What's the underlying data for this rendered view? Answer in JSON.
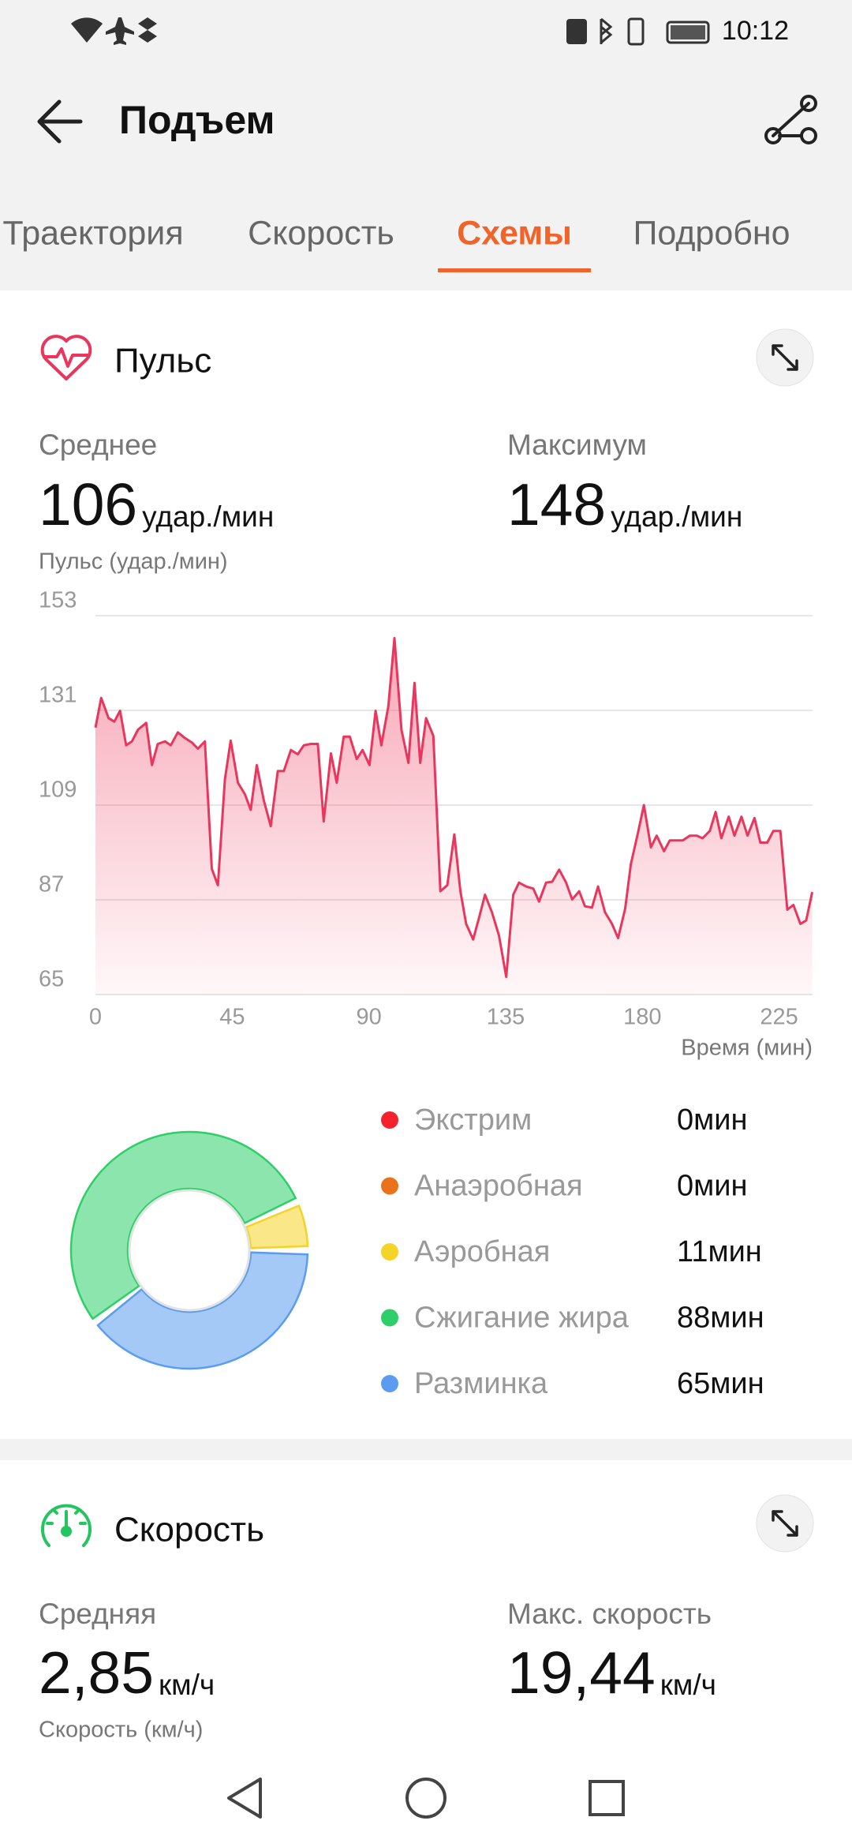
{
  "status_bar": {
    "time": "10:12"
  },
  "header": {
    "title": "Подъем"
  },
  "tabs": {
    "items": [
      "Траектория",
      "Скорость",
      "Схемы",
      "Подробно"
    ]
  },
  "pulse": {
    "title": "Пульс",
    "average": {
      "label": "Среднее",
      "value": 106,
      "unit": "удар./мин"
    },
    "maximum": {
      "label": "Максимум",
      "value": 148,
      "unit": "удар./мин"
    },
    "chart_data": {
      "type": "line",
      "y_label": "Пульс (удар./мин)",
      "x_label": "Время (мин)",
      "color": "#e8365d",
      "grid": true,
      "xlim": [
        0,
        236
      ],
      "ylim": [
        65,
        153
      ],
      "xticks": [
        0,
        45,
        90,
        135,
        180,
        225
      ],
      "yticks": [
        65,
        87,
        109,
        131,
        153
      ],
      "x": [
        0,
        1.9,
        4.3,
        6.2,
        8.1,
        10.1,
        12.0,
        14.0,
        16.7,
        18.6,
        20.5,
        22.9,
        24.8,
        27.1,
        29.4,
        31.8,
        33.7,
        36.0,
        38.3,
        40.3,
        42.6,
        44.5,
        46.9,
        49.2,
        51.1,
        53.1,
        55.4,
        57.7,
        60.0,
        62.0,
        64.3,
        66.6,
        68.6,
        70.9,
        73.2,
        75.1,
        77.5,
        79.4,
        81.7,
        83.7,
        86.0,
        87.9,
        90.2,
        92.2,
        94.1,
        96.4,
        98.4,
        100.7,
        103.0,
        105.0,
        106.9,
        108.8,
        111.2,
        113.5,
        115.8,
        118.1,
        120.1,
        122.0,
        124.3,
        126.3,
        128.2,
        130.5,
        132.8,
        135.2,
        137.5,
        139.4,
        141.7,
        144.1,
        146.0,
        148.3,
        150.3,
        152.6,
        154.9,
        156.9,
        159.2,
        161.1,
        163.4,
        165.4,
        167.7,
        170.0,
        172.0,
        174.3,
        176.2,
        178.5,
        180.5,
        182.8,
        184.7,
        187.1,
        189.0,
        191.3,
        193.3,
        195.6,
        197.9,
        199.8,
        202.2,
        204.1,
        206.0,
        208.4,
        210.3,
        212.6,
        214.6,
        216.9,
        218.8,
        221.1,
        223.1,
        225.4,
        227.7,
        229.7,
        232.0,
        233.9,
        235.9
      ],
      "values": [
        127.0,
        133.9,
        129.2,
        128.4,
        130.9,
        122.9,
        123.8,
        126.5,
        128.1,
        118.3,
        123.2,
        123.8,
        122.9,
        125.9,
        124.6,
        123.5,
        122.1,
        123.8,
        94.2,
        90.4,
        115.0,
        124.0,
        114.2,
        111.5,
        107.9,
        118.3,
        110.1,
        104.1,
        116.9,
        116.9,
        121.8,
        120.8,
        122.9,
        123.2,
        123.2,
        105.2,
        121.0,
        114.2,
        124.9,
        124.9,
        119.7,
        121.8,
        118.3,
        130.9,
        122.9,
        132.0,
        147.8,
        126.5,
        118.8,
        137.4,
        118.8,
        129.2,
        125.1,
        89.0,
        90.4,
        102.2,
        89.0,
        81.4,
        77.8,
        83.0,
        88.2,
        84.1,
        78.7,
        69.1,
        88.2,
        91.0,
        90.1,
        89.6,
        86.6,
        91.0,
        91.2,
        94.0,
        91.0,
        87.1,
        89.0,
        85.5,
        85.2,
        90.1,
        84.1,
        81.4,
        78.1,
        84.9,
        95.3,
        102.4,
        109.0,
        99.2,
        101.9,
        98.3,
        100.8,
        100.8,
        100.8,
        101.9,
        101.9,
        101.3,
        103.0,
        107.4,
        101.3,
        106.3,
        101.9,
        106.3,
        101.9,
        106.0,
        100.3,
        100.3,
        103.0,
        103.0,
        84.7,
        85.8,
        81.4,
        82.2,
        88.8
      ]
    },
    "zones": {
      "type": "donut",
      "categories": [
        "Экстрим",
        "Анаэробная",
        "Аэробная",
        "Сжигание жира",
        "Разминка"
      ],
      "values": [
        0,
        0,
        11,
        88,
        65
      ],
      "value_labels": [
        "0мин",
        "0мин",
        "11мин",
        "88мин",
        "65мин"
      ],
      "colors": [
        "#f5222d",
        "#e8731a",
        "#f5d327",
        "#2ecf68",
        "#5b9cf0"
      ]
    }
  },
  "speed": {
    "title": "Скорость",
    "average": {
      "label": "Средняя",
      "value": "2,85",
      "unit": "км/ч"
    },
    "maximum": {
      "label": "Макс. скорость",
      "value": "19,44",
      "unit": "км/ч"
    },
    "axis_label": "Скорость (км/ч)"
  }
}
